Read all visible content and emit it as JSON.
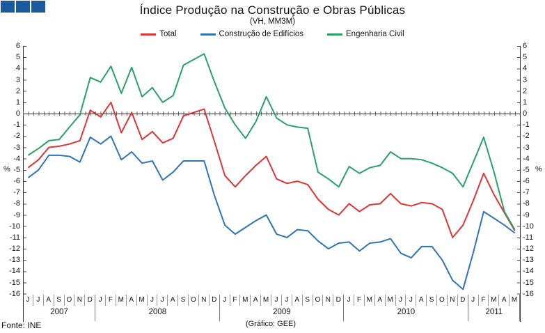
{
  "logo": {
    "squares": 3,
    "color": "#1A5AA0"
  },
  "title": "Índice Produção na Construção e Obras Públicas",
  "subtitle": "(VH, MM3M)",
  "footer": {
    "source": "Fonte: INE",
    "credit": "(Gráfico: GEE)"
  },
  "percent_label": "%",
  "chart_data": {
    "type": "line",
    "title": "Índice Produção na Construção e Obras Públicas",
    "subtitle": "(VH, MM3M)",
    "y_unit": "%",
    "ylim": [
      -16,
      6
    ],
    "grid": false,
    "legend_position": "top",
    "y_ticks": [
      6,
      5,
      4,
      3,
      2,
      1,
      0,
      -1,
      -2,
      -3,
      -4,
      -5,
      -6,
      -7,
      -8,
      -9,
      -10,
      -11,
      -12,
      -13,
      -14,
      -15,
      -16
    ],
    "month_labels": [
      "J",
      "J",
      "A",
      "S",
      "O",
      "N",
      "D",
      "J",
      "F",
      "M",
      "A",
      "M",
      "J",
      "J",
      "A",
      "S",
      "O",
      "N",
      "D",
      "J",
      "F",
      "M",
      "A",
      "M",
      "J",
      "J",
      "A",
      "S",
      "O",
      "N",
      "D",
      "J",
      "F",
      "M",
      "A",
      "M",
      "J",
      "J",
      "A",
      "S",
      "O",
      "N",
      "D",
      "J",
      "F",
      "M",
      "A",
      "M"
    ],
    "years": [
      {
        "label": "2007",
        "months": 7
      },
      {
        "label": "2008",
        "months": 12
      },
      {
        "label": "2009",
        "months": 12
      },
      {
        "label": "2010",
        "months": 12
      },
      {
        "label": "2011",
        "months": 5
      }
    ],
    "series": [
      {
        "name": "Total",
        "color": "#DE3434",
        "values": [
          -4.8,
          -4.1,
          -3.0,
          -2.9,
          -2.7,
          -2.4,
          0.3,
          -0.3,
          1.0,
          -1.7,
          0.1,
          -2.3,
          -1.6,
          -2.6,
          -2.2,
          -0.2,
          0.1,
          0.4,
          -2.5,
          -5.5,
          -6.5,
          -5.5,
          -4.6,
          -3.8,
          -5.8,
          -6.2,
          -6.0,
          -6.3,
          -7.6,
          -8.5,
          -9.0,
          -8.0,
          -8.7,
          -8.1,
          -8.0,
          -7.1,
          -8.0,
          -8.2,
          -7.9,
          -8.0,
          -8.5,
          -11.0,
          -9.9,
          -7.7,
          -5.3,
          -7.2,
          -8.8,
          -10.4
        ]
      },
      {
        "name": "Construção de Edifícios",
        "color": "#2E74B6",
        "values": [
          -5.7,
          -5.0,
          -3.7,
          -3.7,
          -3.8,
          -4.3,
          -2.1,
          -2.7,
          -2.0,
          -4.1,
          -3.4,
          -4.4,
          -4.2,
          -5.9,
          -5.2,
          -4.2,
          -4.2,
          -4.2,
          -7.3,
          -9.9,
          -10.7,
          -10.1,
          -9.5,
          -9.0,
          -10.7,
          -11.0,
          -10.3,
          -10.4,
          -11.3,
          -12.0,
          -11.5,
          -11.4,
          -12.2,
          -11.5,
          -11.4,
          -11.1,
          -12.4,
          -12.8,
          -11.8,
          -11.8,
          -13.0,
          -14.8,
          -15.6,
          -12.3,
          -8.7,
          -9.3,
          -9.9,
          -10.6
        ]
      },
      {
        "name": "Engenharia Civil",
        "color": "#27A263",
        "values": [
          -3.7,
          -3.1,
          -2.4,
          -2.3,
          -1.2,
          -0.1,
          3.2,
          2.8,
          4.2,
          1.8,
          4.1,
          1.5,
          2.3,
          1.0,
          1.6,
          4.3,
          4.8,
          5.3,
          2.8,
          0.5,
          -1.0,
          -2.2,
          -0.7,
          1.5,
          -0.4,
          -1.0,
          -1.2,
          -1.3,
          -5.2,
          -5.8,
          -6.5,
          -4.7,
          -5.3,
          -4.8,
          -4.6,
          -3.4,
          -4.0,
          -4.0,
          -4.1,
          -4.4,
          -4.8,
          -5.3,
          -6.5,
          -4.3,
          -2.1,
          -5.2,
          -8.7,
          -10.3
        ]
      }
    ]
  }
}
